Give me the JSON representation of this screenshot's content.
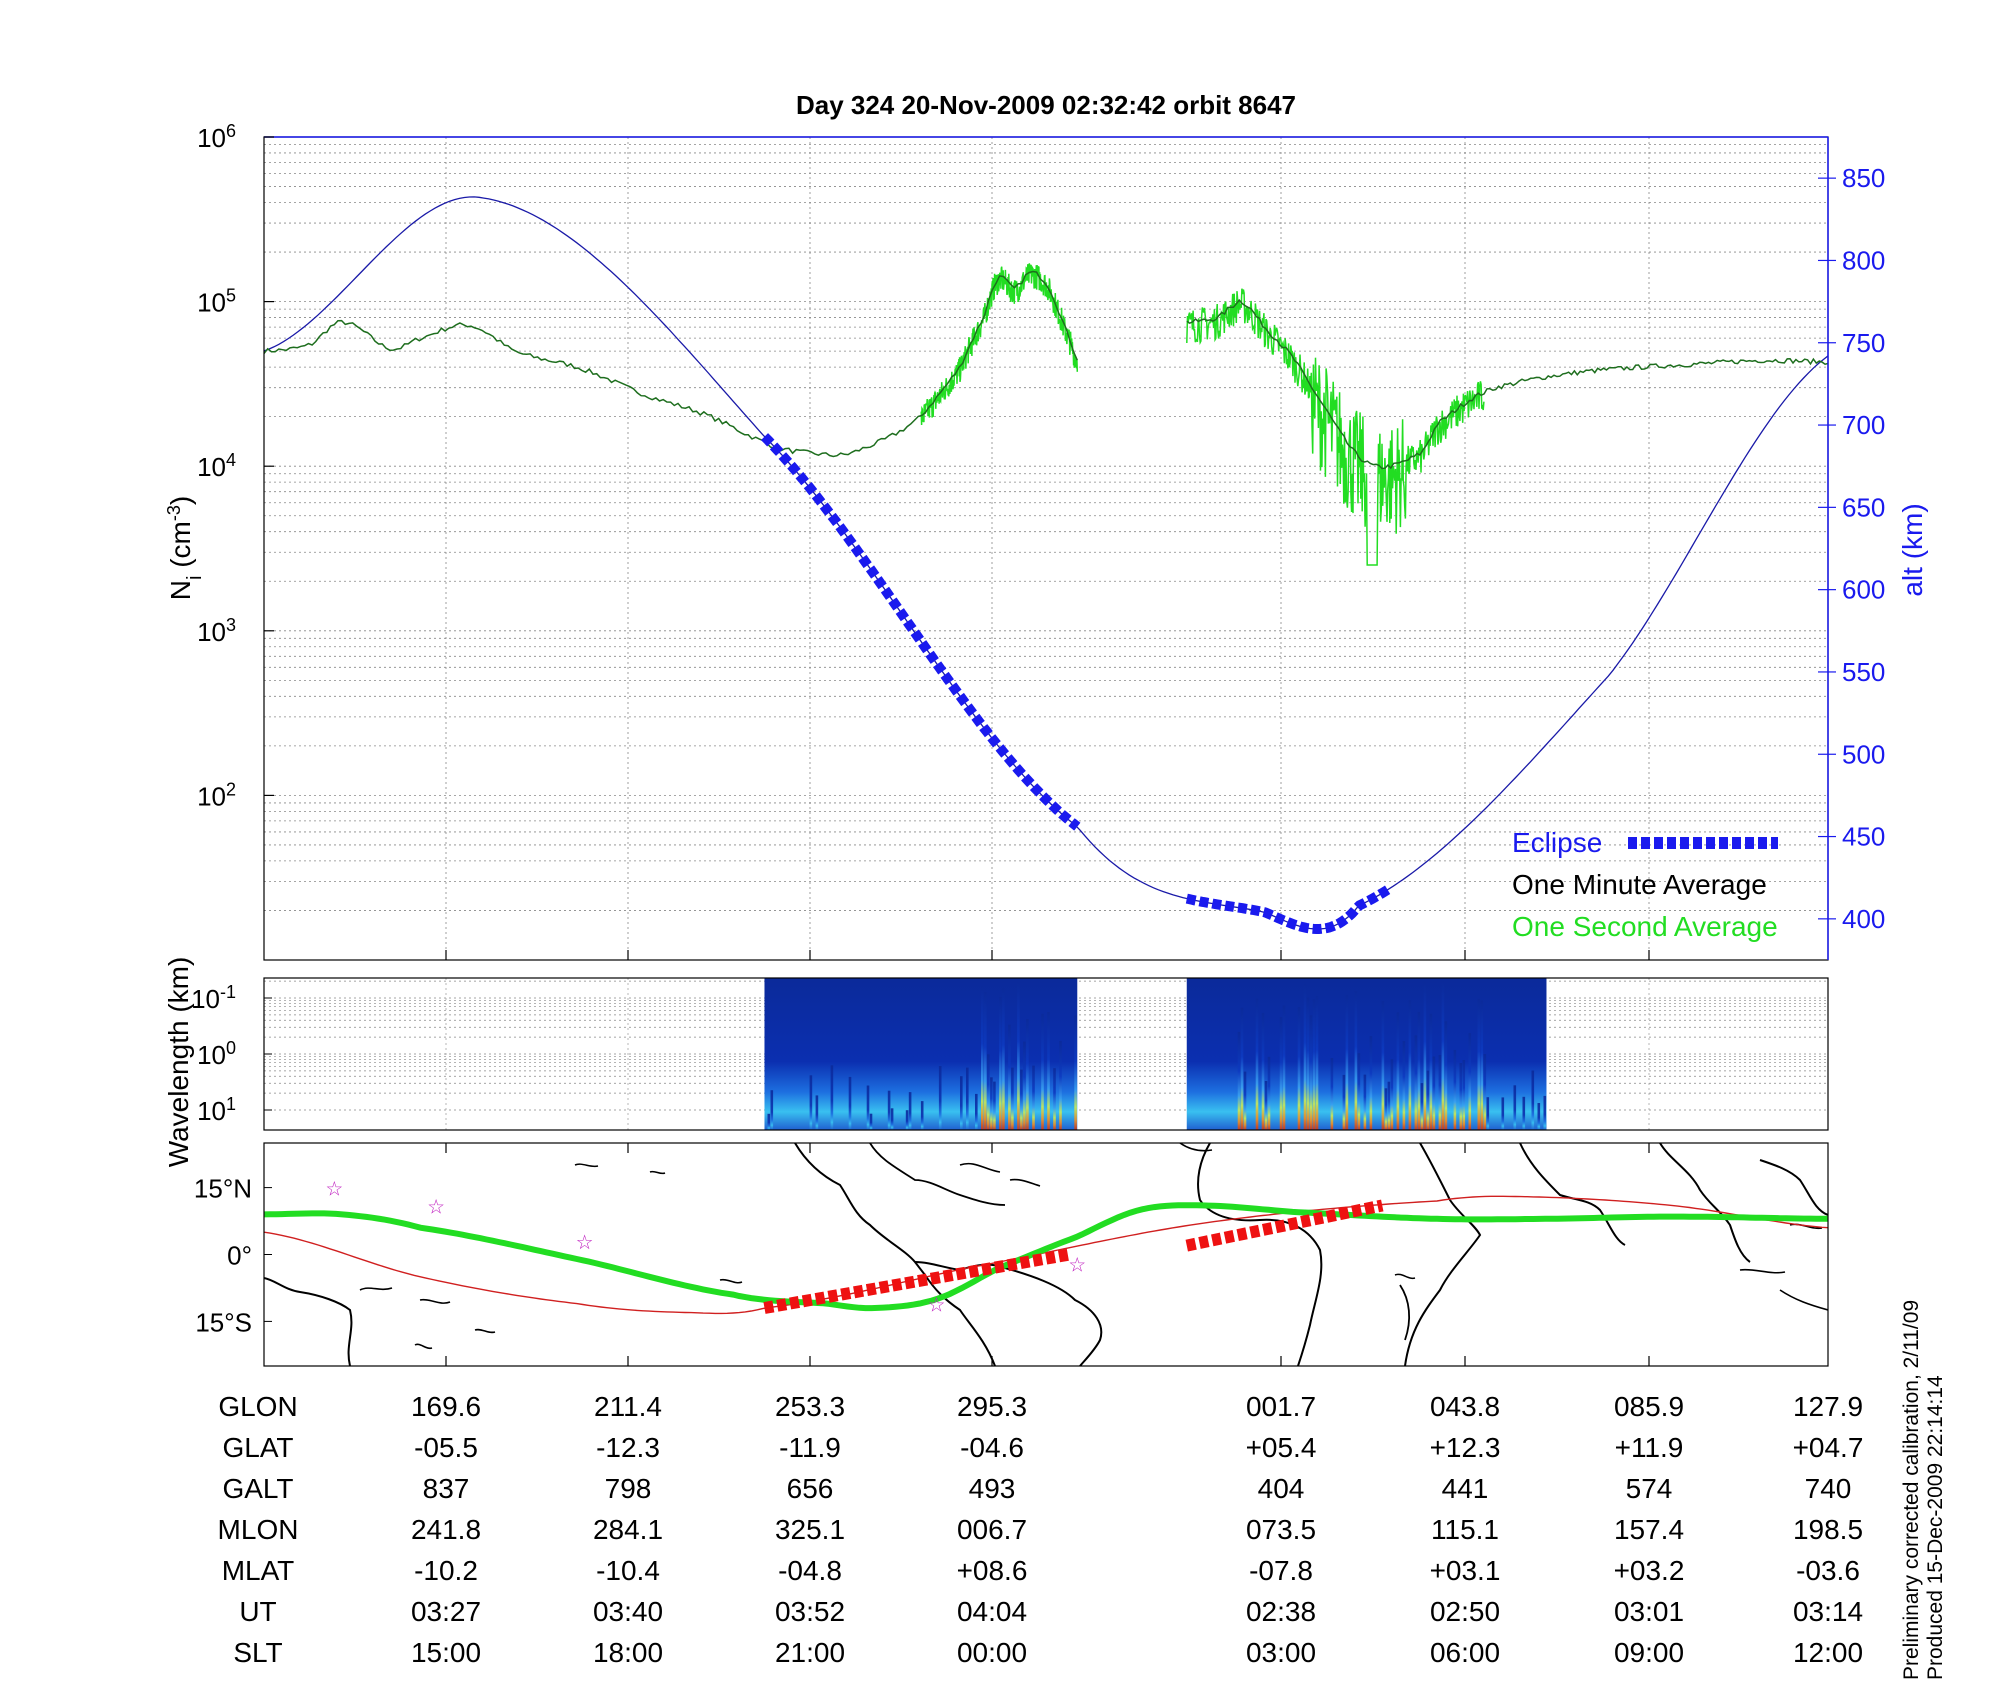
{
  "chart_data": [
    {
      "type": "line",
      "title": "Day 324  20-Nov-2009 02:32:42   orbit 8647",
      "ylabel": "N",
      "ylabel_subscript": "i",
      "ylabel_unit": " (cm",
      "ylabel_unit_exp": "-3",
      "ylabel_unit_close": ")",
      "yscale": "log",
      "ylim": [
        10,
        1000000
      ],
      "yticks": [
        {
          "base": "10",
          "exp": "2"
        },
        {
          "base": "10",
          "exp": "3"
        },
        {
          "base": "10",
          "exp": "4"
        },
        {
          "base": "10",
          "exp": "5"
        },
        {
          "base": "10",
          "exp": "6"
        }
      ],
      "y2label": "alt (km)",
      "y2lim": [
        375,
        875
      ],
      "y2ticks": [
        "400",
        "450",
        "500",
        "550",
        "600",
        "650",
        "700",
        "750",
        "800",
        "850"
      ],
      "xlim": [
        0,
        1
      ],
      "legend": [
        {
          "label": "Eclipse",
          "color": "#1a1aee"
        },
        {
          "label": "One Minute Average",
          "color": "#000000"
        },
        {
          "label": "One Second Average",
          "color": "#22dd22"
        }
      ],
      "series": [
        {
          "name": "Altitude",
          "axis": "y2",
          "color": "#1a1aa8",
          "x": [
            0,
            0.14,
            0.32,
            0.52,
            0.64,
            0.7,
            0.86,
            1.0
          ],
          "y": [
            745,
            838,
            693,
            456,
            404,
            408,
            548,
            742
          ]
        },
        {
          "name": "Eclipse",
          "axis": "y2",
          "color": "#1a1aee",
          "segments": [
            {
              "x": [
                0.32,
                0.52
              ],
              "note": "along altitude"
            },
            {
              "x": [
                0.59,
                0.72
              ],
              "note": "along altitude"
            }
          ]
        },
        {
          "name": "One Minute Average",
          "axis": "y",
          "color": "#1e6e1e",
          "x": [
            0,
            0.03,
            0.05,
            0.08,
            0.1,
            0.13,
            0.16,
            0.2,
            0.24,
            0.28,
            0.32,
            0.35,
            0.38,
            0.42,
            0.445,
            0.46,
            0.47,
            0.48,
            0.49,
            0.5,
            0.51,
            0.515,
            0.52
          ],
          "y": [
            50000,
            55000,
            75000,
            52000,
            60000,
            72000,
            50000,
            40000,
            28000,
            21000,
            14000,
            12000,
            12500,
            20000,
            40000,
            80000,
            140000,
            120000,
            150000,
            130000,
            80000,
            60000,
            45000
          ]
        },
        {
          "name": "One Minute Average (2)",
          "axis": "y",
          "color": "#1e6e1e",
          "x": [
            0.59,
            0.61,
            0.62,
            0.625,
            0.64,
            0.65,
            0.67,
            0.69,
            0.71,
            0.74,
            0.75,
            0.78,
            0.8,
            0.82,
            0.85,
            0.88,
            0.92,
            0.96,
            1.0
          ],
          "y": [
            75000,
            80000,
            95000,
            100000,
            70000,
            55000,
            30000,
            15000,
            10000,
            12000,
            18000,
            28000,
            32000,
            35000,
            38000,
            40000,
            42000,
            44000,
            43000
          ]
        },
        {
          "name": "One Second Average",
          "axis": "y",
          "color": "#22dd22",
          "note": "noisy; follows one-minute average over 0.42-0.52 and 0.59-0.78, dips to ~2500 near x=0.71"
        }
      ]
    },
    {
      "type": "heatmap",
      "ylabel": "Wavelength (km)",
      "yticks": [
        {
          "base": "10",
          "exp": "-1"
        },
        {
          "base": "10",
          "exp": "0"
        },
        {
          "base": "10",
          "exp": "1"
        }
      ],
      "colormap": "jet",
      "segments": [
        {
          "x": [
            0.32,
            0.52
          ]
        },
        {
          "x": [
            0.59,
            0.82
          ]
        }
      ]
    },
    {
      "type": "line",
      "subtype": "map",
      "yticks": [
        "15°N",
        "0°",
        "15°S"
      ],
      "ylim": [
        -25,
        25
      ],
      "series": [
        {
          "name": "Orbit track",
          "color": "#22dd22",
          "x": [
            0,
            0.05,
            0.1,
            0.2,
            0.3,
            0.36,
            0.39,
            0.43,
            0.47,
            0.52,
            0.56,
            0.6,
            0.66,
            0.75,
            0.82,
            0.9,
            1.0
          ],
          "y": [
            9,
            9,
            6,
            -1,
            -9,
            -11,
            -12,
            -10,
            -3,
            4,
            10,
            11,
            9.5,
            8,
            8,
            8.5,
            8
          ]
        },
        {
          "name": "Magnetic equator",
          "color": "#d02020",
          "x": [
            0,
            0.1,
            0.2,
            0.27,
            0.32,
            0.45,
            0.6,
            0.75,
            0.8,
            0.9,
            1.0
          ],
          "y": [
            5,
            -5,
            -11,
            -13,
            -12,
            -3,
            7,
            12,
            13,
            11,
            6
          ]
        },
        {
          "name": "Eclipse (map)",
          "color": "#ee1111",
          "segments": [
            {
              "x": [
                0.32,
                0.515
              ],
              "y": [
                -12,
                0
              ]
            },
            {
              "x": [
                0.59,
                0.715
              ],
              "y": [
                2,
                11
              ]
            }
          ]
        }
      ],
      "markers": [
        {
          "x": 0.045,
          "y": 15
        },
        {
          "x": 0.11,
          "y": 11
        },
        {
          "x": 0.205,
          "y": 3
        },
        {
          "x": 0.43,
          "y": -11
        },
        {
          "x": 0.52,
          "y": -2
        }
      ]
    }
  ],
  "table": {
    "row_labels": [
      "GLON",
      "GLAT",
      "GALT",
      "MLON",
      "MLAT",
      "UT",
      "SLT"
    ],
    "columns": [
      [
        "169.6",
        "-05.5",
        "837",
        "241.8",
        "-10.2",
        "03:27",
        "15:00"
      ],
      [
        "211.4",
        "-12.3",
        "798",
        "284.1",
        "-10.4",
        "03:40",
        "18:00"
      ],
      [
        "253.3",
        "-11.9",
        "656",
        "325.1",
        "-04.8",
        "03:52",
        "21:00"
      ],
      [
        "295.3",
        "-04.6",
        "493",
        "006.7",
        "+08.6",
        "04:04",
        "00:00"
      ],
      [
        "001.7",
        "+05.4",
        "404",
        "073.5",
        "-07.8",
        "02:38",
        "03:00"
      ],
      [
        "043.8",
        "+12.3",
        "441",
        "115.1",
        "+03.1",
        "02:50",
        "06:00"
      ],
      [
        "085.9",
        "+11.9",
        "574",
        "157.4",
        "+03.2",
        "03:01",
        "09:00"
      ],
      [
        "127.9",
        "+04.7",
        "740",
        "198.5",
        "-03.6",
        "03:14",
        "12:00"
      ]
    ]
  },
  "footer": {
    "line1": "Preliminary corrected calibration, 2/11/09",
    "line2": "Produced 15-Dec-2009 22:14:14"
  },
  "colors": {
    "altitude": "#1a1aa8",
    "eclipse": "#1a1aee",
    "minute": "#1e6e1e",
    "second": "#22dd22",
    "track": "#22dd22",
    "equator": "#d02020",
    "eclipse_map": "#ee1111"
  }
}
